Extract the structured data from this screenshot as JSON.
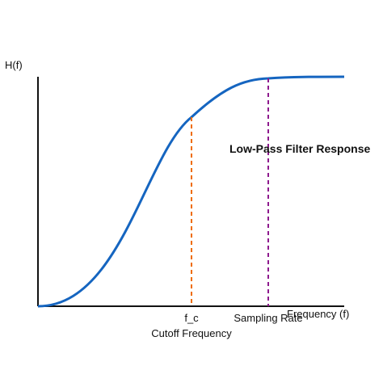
{
  "chart_data": {
    "type": "line",
    "title": "Low-Pass Filter Response",
    "xlabel": "Frequency (f)",
    "ylabel": "H(f)",
    "colors": {
      "curve": "#1565c0",
      "cutoff": "#ef6c00",
      "sampling": "#8e1a8e",
      "axis": "#111111"
    },
    "markers": {
      "cutoff": {
        "tick_label": "f_c",
        "caption": "Cutoff Frequency"
      },
      "sampling": {
        "caption": "Sampling Rate"
      }
    },
    "grid": false,
    "legend": "none"
  }
}
